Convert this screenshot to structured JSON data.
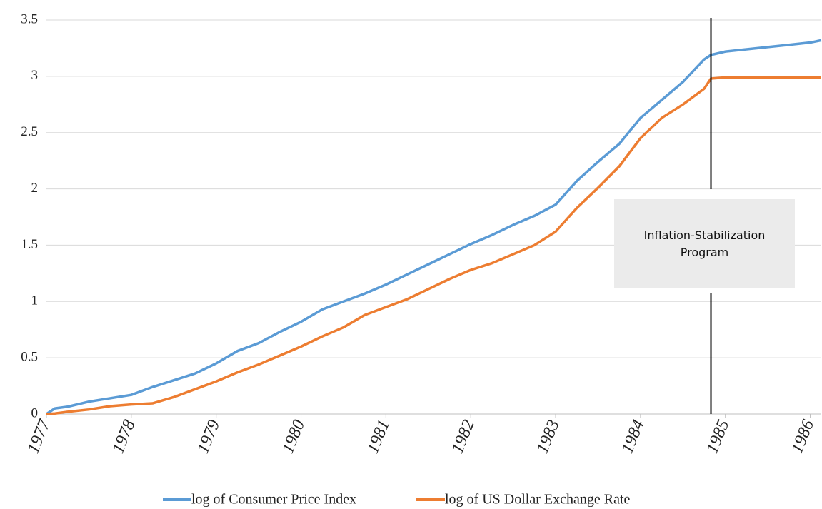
{
  "chart_data": {
    "type": "line",
    "x": [
      1977,
      1977.1,
      1977.25,
      1977.5,
      1977.75,
      1978,
      1978.25,
      1978.5,
      1978.75,
      1979,
      1979.25,
      1979.5,
      1979.75,
      1980,
      1980.25,
      1980.5,
      1980.75,
      1981,
      1981.25,
      1981.5,
      1981.75,
      1982,
      1982.25,
      1982.5,
      1982.75,
      1983,
      1983.25,
      1983.5,
      1983.75,
      1984,
      1984.25,
      1984.5,
      1984.75,
      1984.83,
      1985,
      1985.25,
      1985.5,
      1985.75,
      1986,
      1986.13
    ],
    "series": [
      {
        "name": "log of Consumer Price Index",
        "color": "#5b9bd5",
        "values": [
          0,
          0.05,
          0.065,
          0.11,
          0.14,
          0.17,
          0.24,
          0.3,
          0.36,
          0.45,
          0.56,
          0.63,
          0.73,
          0.82,
          0.93,
          1.0,
          1.07,
          1.15,
          1.24,
          1.33,
          1.42,
          1.51,
          1.59,
          1.68,
          1.76,
          1.86,
          2.07,
          2.24,
          2.4,
          2.63,
          2.79,
          2.95,
          3.15,
          3.19,
          3.22,
          3.24,
          3.26,
          3.28,
          3.3,
          3.32
        ]
      },
      {
        "name": "log of US Dollar Exchange Rate",
        "color": "#ed7d31",
        "values": [
          0,
          0.005,
          0.02,
          0.04,
          0.07,
          0.085,
          0.095,
          0.15,
          0.22,
          0.29,
          0.37,
          0.44,
          0.52,
          0.6,
          0.69,
          0.77,
          0.88,
          0.95,
          1.02,
          1.11,
          1.2,
          1.28,
          1.34,
          1.42,
          1.5,
          1.62,
          1.83,
          2.01,
          2.2,
          2.45,
          2.63,
          2.75,
          2.89,
          2.98,
          2.99,
          2.99,
          2.99,
          2.99,
          2.99,
          2.99
        ]
      }
    ],
    "xlim": [
      1977,
      1986.13
    ],
    "xticks": [
      1977,
      1978,
      1979,
      1980,
      1981,
      1982,
      1983,
      1984,
      1985,
      1986
    ],
    "ylim": [
      0,
      3.5
    ],
    "yticks": [
      0,
      0.5,
      1,
      1.5,
      2,
      2.5,
      3,
      3.5
    ],
    "grid": true,
    "annotation": {
      "text": "Inflation-Stabilization Program",
      "x": 1984.83
    },
    "legend": "bottom"
  }
}
